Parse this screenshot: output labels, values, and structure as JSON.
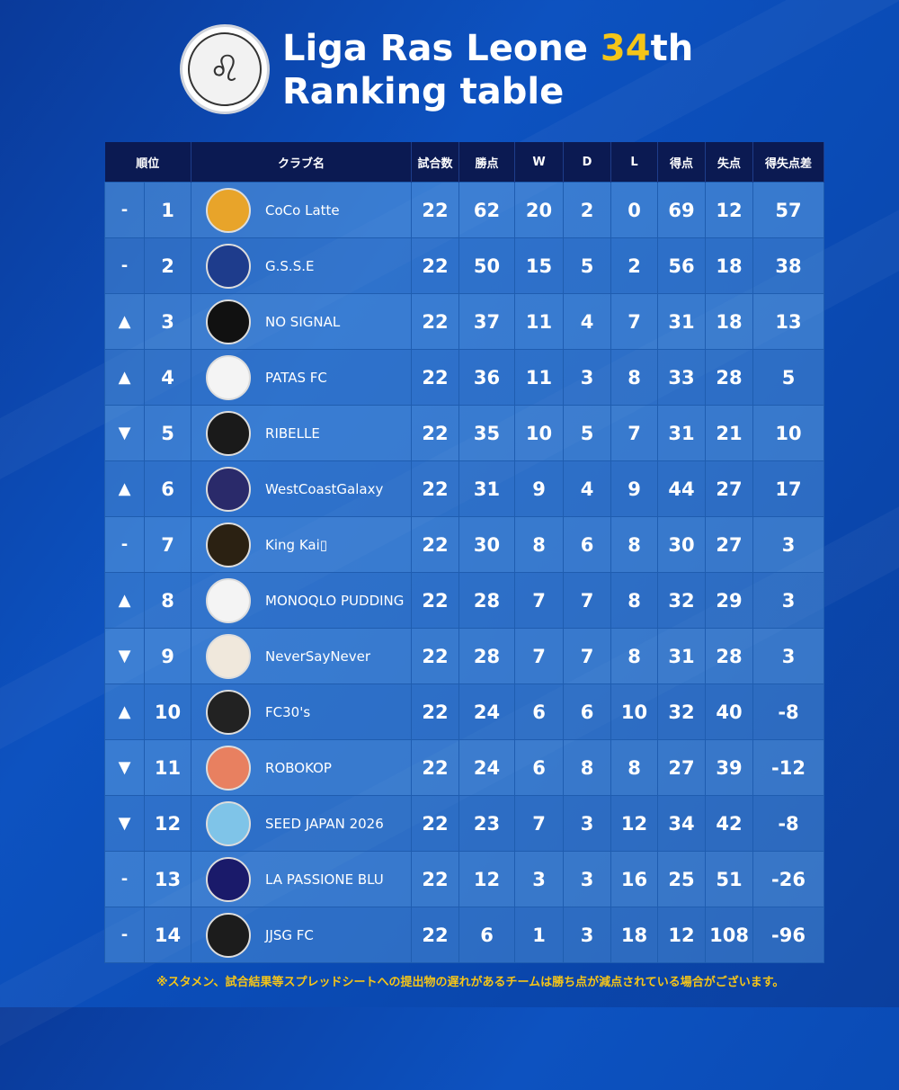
{
  "header": {
    "title_line1_pre": "Liga Ras Leone ",
    "title_highlight": "34",
    "title_line1_post": "th",
    "title_line2": "Ranking table"
  },
  "colors": {
    "accent": "#f5c518",
    "header_bg": "#0b1a52"
  },
  "columns": [
    "順位",
    "クラブ名",
    "試合数",
    "勝点",
    "W",
    "D",
    "L",
    "得点",
    "失点",
    "得失点差"
  ],
  "rows": [
    {
      "move": "-",
      "rank": "1",
      "club": "CoCo Latte",
      "color": "#e8a42a",
      "p": "22",
      "pts": "62",
      "w": "20",
      "d": "2",
      "l": "0",
      "gf": "69",
      "ga": "12",
      "gd": "57"
    },
    {
      "move": "-",
      "rank": "2",
      "club": "G.S.S.E",
      "color": "#1e3c8c",
      "p": "22",
      "pts": "50",
      "w": "15",
      "d": "5",
      "l": "2",
      "gf": "56",
      "ga": "18",
      "gd": "38"
    },
    {
      "move": "▲",
      "rank": "3",
      "club": "NO SIGNAL",
      "color": "#111111",
      "p": "22",
      "pts": "37",
      "w": "11",
      "d": "4",
      "l": "7",
      "gf": "31",
      "ga": "18",
      "gd": "13"
    },
    {
      "move": "▲",
      "rank": "4",
      "club": "PATAS FC",
      "color": "#f4f4f4",
      "p": "22",
      "pts": "36",
      "w": "11",
      "d": "3",
      "l": "8",
      "gf": "33",
      "ga": "28",
      "gd": "5"
    },
    {
      "move": "▼",
      "rank": "5",
      "club": "RIBELLE",
      "color": "#1a1a1a",
      "p": "22",
      "pts": "35",
      "w": "10",
      "d": "5",
      "l": "7",
      "gf": "31",
      "ga": "21",
      "gd": "10"
    },
    {
      "move": "▲",
      "rank": "6",
      "club": "WestCoastGalaxy",
      "color": "#2a2a6a",
      "p": "22",
      "pts": "31",
      "w": "9",
      "d": "4",
      "l": "9",
      "gf": "44",
      "ga": "27",
      "gd": "17"
    },
    {
      "move": "-",
      "rank": "7",
      "club": "King Kai▯",
      "color": "#2b2112",
      "p": "22",
      "pts": "30",
      "w": "8",
      "d": "6",
      "l": "8",
      "gf": "30",
      "ga": "27",
      "gd": "3"
    },
    {
      "move": "▲",
      "rank": "8",
      "club": "MONOQLO PUDDING",
      "color": "#f4f4f4",
      "p": "22",
      "pts": "28",
      "w": "7",
      "d": "7",
      "l": "8",
      "gf": "32",
      "ga": "29",
      "gd": "3"
    },
    {
      "move": "▼",
      "rank": "9",
      "club": "NeverSayNever",
      "color": "#f0e8dc",
      "p": "22",
      "pts": "28",
      "w": "7",
      "d": "7",
      "l": "8",
      "gf": "31",
      "ga": "28",
      "gd": "3"
    },
    {
      "move": "▲",
      "rank": "10",
      "club": "FC30's",
      "color": "#222222",
      "p": "22",
      "pts": "24",
      "w": "6",
      "d": "6",
      "l": "10",
      "gf": "32",
      "ga": "40",
      "gd": "-8"
    },
    {
      "move": "▼",
      "rank": "11",
      "club": "ROBOKOP",
      "color": "#e88060",
      "p": "22",
      "pts": "24",
      "w": "6",
      "d": "8",
      "l": "8",
      "gf": "27",
      "ga": "39",
      "gd": "-12"
    },
    {
      "move": "▼",
      "rank": "12",
      "club": "SEED JAPAN 2026",
      "color": "#7fc4e8",
      "p": "22",
      "pts": "23",
      "w": "7",
      "d": "3",
      "l": "12",
      "gf": "34",
      "ga": "42",
      "gd": "-8"
    },
    {
      "move": "-",
      "rank": "13",
      "club": "LA PASSIONE BLU",
      "color": "#1a1a6a",
      "p": "22",
      "pts": "12",
      "w": "3",
      "d": "3",
      "l": "16",
      "gf": "25",
      "ga": "51",
      "gd": "-26"
    },
    {
      "move": "-",
      "rank": "14",
      "club": "JJSG FC",
      "color": "#1c1c1c",
      "p": "22",
      "pts": "6",
      "w": "1",
      "d": "3",
      "l": "18",
      "gf": "12",
      "ga": "108",
      "gd": "-96"
    }
  ],
  "footnote": "※スタメン、試合結果等スプレッドシートへの提出物の遅れがあるチームは勝ち点が減点されている場合がございます。"
}
